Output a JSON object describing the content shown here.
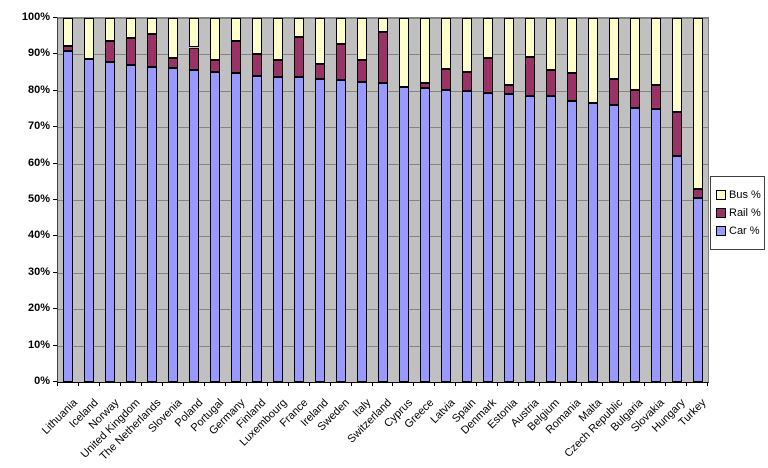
{
  "chart_data": {
    "type": "bar",
    "stacked": true,
    "orientation": "vertical",
    "title": "",
    "xlabel": "",
    "ylabel": "",
    "ylim": [
      0,
      100
    ],
    "y_tick_step": 10,
    "y_tick_labels": [
      "0%",
      "10%",
      "20%",
      "30%",
      "40%",
      "50%",
      "60%",
      "70%",
      "80%",
      "90%",
      "100%"
    ],
    "grid": true,
    "plot_background_color": "#C0C0C0",
    "gridline_color": "#848484",
    "bar_border_color": "#000000",
    "legend_position": "right",
    "legend_order": [
      "Bus %",
      "Rail %",
      "Car %"
    ],
    "categories": [
      "Lithuania",
      "Iceland",
      "Norway",
      "United Kingdom",
      "The Netherlands",
      "Slovenia",
      "Poland",
      "Portugal",
      "Germany",
      "Finland",
      "Luxembourg",
      "France",
      "Ireland",
      "Sweden",
      "Italy",
      "Switzerland",
      "Cyprus",
      "Greece",
      "Latvia",
      "Spain",
      "Denmark",
      "Estonia",
      "Austria",
      "Belgium",
      "Romania",
      "Malta",
      "Czech Republic",
      "Bulgaria",
      "Slovakia",
      "Hungary",
      "Turkey"
    ],
    "series": [
      {
        "name": "Car %",
        "color": "#9999FF",
        "values": [
          91.0,
          88.8,
          87.8,
          87.2,
          86.6,
          86.2,
          85.7,
          85.3,
          85.0,
          84.2,
          83.9,
          83.7,
          83.3,
          83.0,
          82.4,
          82.2,
          81.1,
          80.7,
          80.1,
          79.9,
          79.3,
          79.2,
          78.7,
          78.5,
          77.3,
          76.7,
          76.0,
          75.3,
          75.1,
          62.2,
          50.5
        ]
      },
      {
        "name": "Rail %",
        "color": "#993366",
        "values": [
          1.4,
          0.0,
          5.9,
          7.4,
          8.9,
          2.8,
          6.2,
          3.3,
          8.7,
          5.9,
          4.6,
          11.1,
          4.0,
          9.8,
          6.0,
          14.0,
          0.0,
          1.5,
          5.8,
          5.4,
          9.8,
          2.3,
          10.7,
          7.2,
          7.7,
          0.0,
          7.3,
          4.8,
          6.4,
          12.0,
          2.5
        ]
      },
      {
        "name": "Bus %",
        "color": "#FFFFCC",
        "values": [
          7.6,
          11.2,
          6.3,
          5.4,
          4.5,
          11.0,
          8.1,
          11.4,
          6.3,
          9.9,
          11.5,
          5.2,
          12.7,
          7.2,
          11.6,
          3.8,
          18.9,
          17.8,
          14.1,
          14.7,
          10.9,
          18.5,
          10.6,
          14.3,
          15.0,
          23.3,
          16.7,
          19.9,
          18.5,
          25.8,
          47.0
        ]
      }
    ]
  }
}
